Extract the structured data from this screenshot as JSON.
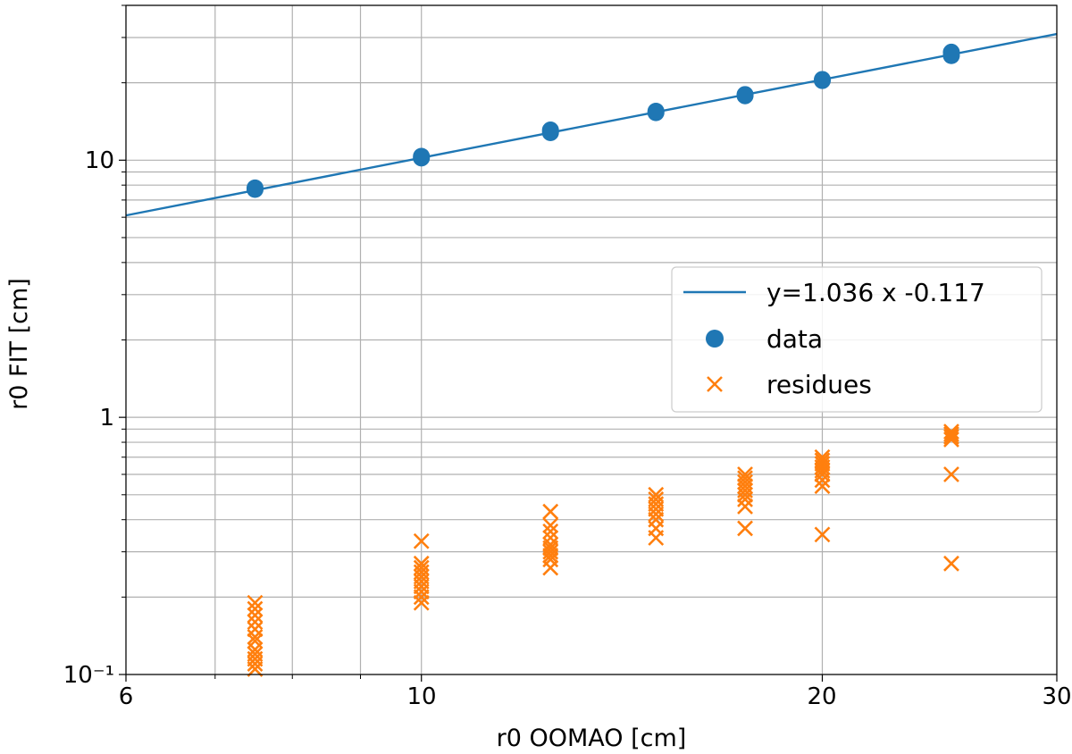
{
  "chart_data": {
    "type": "scatter",
    "xscale": "log",
    "yscale": "log",
    "xlim": [
      6,
      30
    ],
    "ylim": [
      0.1,
      40
    ],
    "xlabel": "r0 OOMAO [cm]",
    "ylabel": "r0 FIT [cm]",
    "x_ticks": [
      "6",
      "10",
      "20",
      "30"
    ],
    "y_ticks": [
      "10⁻¹",
      "1",
      "10"
    ],
    "grid": true,
    "legend_position": "center-right",
    "colors": {
      "fit": "#1f77b4",
      "data": "#1f77b4",
      "residues": "#ff7f0e"
    },
    "fit_line": {
      "label": "y=1.036 x -0.117",
      "slope": 1.036,
      "intercept": -0.117
    },
    "series": [
      {
        "name": "data",
        "marker": "circle",
        "points": [
          [
            7.5,
            7.7
          ],
          [
            7.5,
            7.8
          ],
          [
            10,
            10.2
          ],
          [
            10,
            10.35
          ],
          [
            12.5,
            12.8
          ],
          [
            12.5,
            13.1
          ],
          [
            15,
            15.5
          ],
          [
            15,
            15.3
          ],
          [
            17.5,
            17.8
          ],
          [
            17.5,
            18.0
          ],
          [
            20,
            20.4
          ],
          [
            20,
            20.6
          ],
          [
            25,
            25.5
          ],
          [
            25,
            26.3
          ]
        ]
      },
      {
        "name": "residues",
        "marker": "x",
        "points": [
          [
            7.5,
            0.105
          ],
          [
            7.5,
            0.11
          ],
          [
            7.5,
            0.115
          ],
          [
            7.5,
            0.12
          ],
          [
            7.5,
            0.125
          ],
          [
            7.5,
            0.135
          ],
          [
            7.5,
            0.14
          ],
          [
            7.5,
            0.15
          ],
          [
            7.5,
            0.16
          ],
          [
            7.5,
            0.17
          ],
          [
            7.5,
            0.18
          ],
          [
            7.5,
            0.19
          ],
          [
            10,
            0.19
          ],
          [
            10,
            0.2
          ],
          [
            10,
            0.21
          ],
          [
            10,
            0.22
          ],
          [
            10,
            0.23
          ],
          [
            10,
            0.24
          ],
          [
            10,
            0.25
          ],
          [
            10,
            0.26
          ],
          [
            10,
            0.27
          ],
          [
            10,
            0.33
          ],
          [
            12.5,
            0.26
          ],
          [
            12.5,
            0.28
          ],
          [
            12.5,
            0.29
          ],
          [
            12.5,
            0.3
          ],
          [
            12.5,
            0.31
          ],
          [
            12.5,
            0.32
          ],
          [
            12.5,
            0.34
          ],
          [
            12.5,
            0.36
          ],
          [
            12.5,
            0.38
          ],
          [
            12.5,
            0.43
          ],
          [
            15,
            0.34
          ],
          [
            15,
            0.37
          ],
          [
            15,
            0.4
          ],
          [
            15,
            0.42
          ],
          [
            15,
            0.44
          ],
          [
            15,
            0.46
          ],
          [
            15,
            0.48
          ],
          [
            15,
            0.5
          ],
          [
            17.5,
            0.37
          ],
          [
            17.5,
            0.45
          ],
          [
            17.5,
            0.48
          ],
          [
            17.5,
            0.5
          ],
          [
            17.5,
            0.52
          ],
          [
            17.5,
            0.54
          ],
          [
            17.5,
            0.56
          ],
          [
            17.5,
            0.58
          ],
          [
            17.5,
            0.6
          ],
          [
            20,
            0.35
          ],
          [
            20,
            0.54
          ],
          [
            20,
            0.57
          ],
          [
            20,
            0.6
          ],
          [
            20,
            0.62
          ],
          [
            20,
            0.64
          ],
          [
            20,
            0.66
          ],
          [
            20,
            0.68
          ],
          [
            20,
            0.7
          ],
          [
            25,
            0.27
          ],
          [
            25,
            0.6
          ],
          [
            25,
            0.82
          ],
          [
            25,
            0.84
          ],
          [
            25,
            0.86
          ],
          [
            25,
            0.88
          ]
        ]
      }
    ]
  }
}
